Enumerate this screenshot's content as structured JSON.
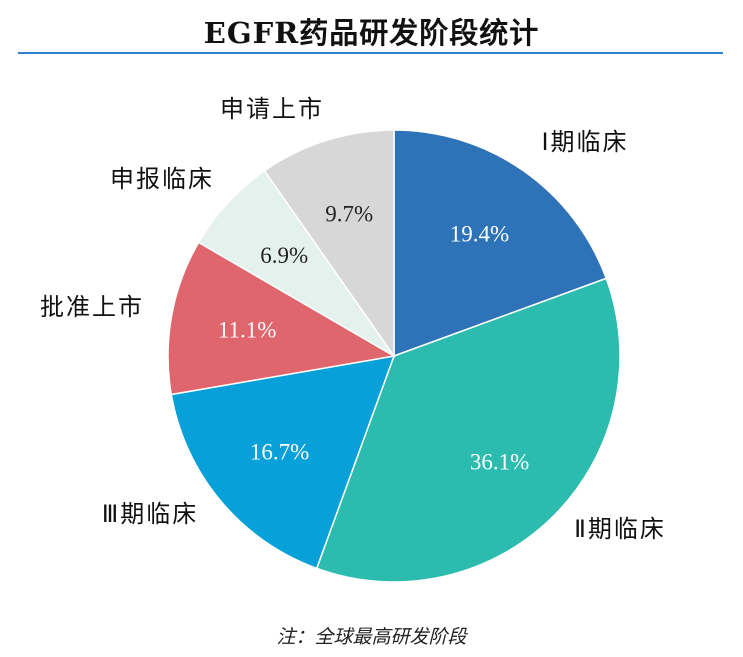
{
  "title": "EGFR药品研发阶段统计",
  "note": "注：全球最高研发阶段",
  "colors": {
    "title_rule": "#2f7fd0",
    "label_text": "#111111",
    "inner_label_light": "#ffffff",
    "inner_label_dark": "#222222"
  },
  "chart_data": {
    "type": "pie",
    "title": "EGFR药品研发阶段统计",
    "start": "12 o'clock",
    "direction": "clockwise",
    "slices": [
      {
        "label": "Ⅰ期临床",
        "value": 19.4,
        "value_label": "19.4%",
        "color": "#2e73b8"
      },
      {
        "label": "Ⅱ期临床",
        "value": 36.1,
        "value_label": "36.1%",
        "color": "#2bbcaf"
      },
      {
        "label": "Ⅲ期临床",
        "value": 16.7,
        "value_label": "16.7%",
        "color": "#07a0d9"
      },
      {
        "label": "批准上市",
        "value": 11.1,
        "value_label": "11.1%",
        "color": "#e0666e"
      },
      {
        "label": "申报临床",
        "value": 6.9,
        "value_label": "6.9%",
        "color": "#e4f1ec"
      },
      {
        "label": "申请上市",
        "value": 9.7,
        "value_label": "9.7%",
        "color": "#d7d7d7"
      }
    ]
  }
}
